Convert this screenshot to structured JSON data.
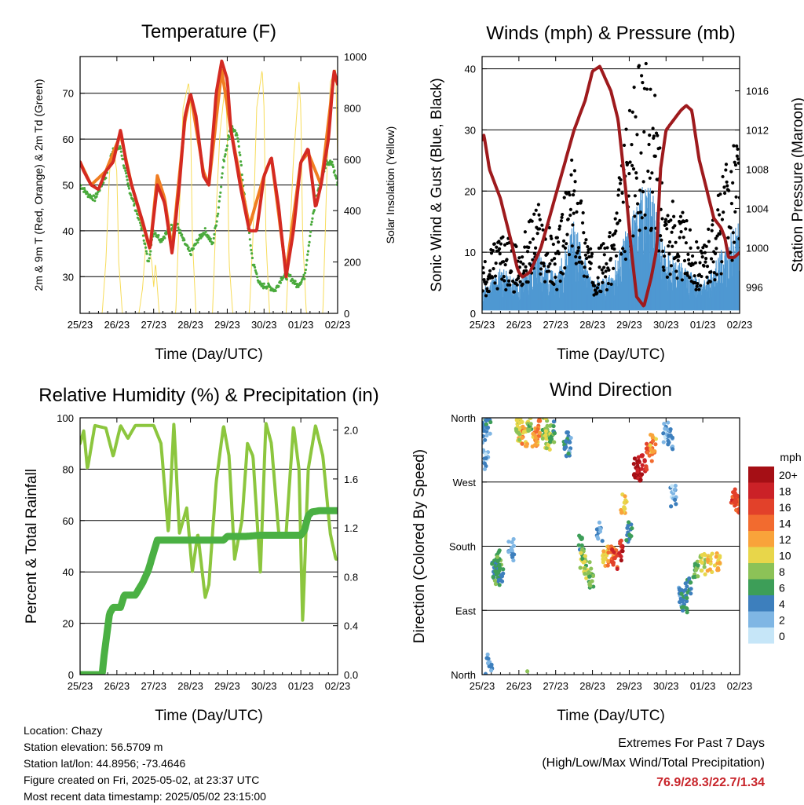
{
  "x_ticks": [
    "25/23",
    "26/23",
    "27/23",
    "28/23",
    "29/23",
    "30/23",
    "01/23",
    "02/23"
  ],
  "x_label": "Time (Day/UTC)",
  "panels": {
    "temperature": {
      "title": "Temperature (F)",
      "ylabel_left": "2m & 9m T (Red, Orange) & 2m Td (Green)",
      "ylabel_right": "Solar Insolation (Yellow)",
      "yticks_left": [
        "30",
        "40",
        "50",
        "60",
        "70"
      ],
      "yticks_right": [
        "0",
        "200",
        "400",
        "600",
        "800",
        "1000"
      ]
    },
    "winds": {
      "title": "Winds (mph) & Pressure (mb)",
      "ylabel_left": "Sonic Wind & Gust (Blue, Black)",
      "ylabel_right": "Station Pressure (Maroon)",
      "yticks_left": [
        "0",
        "10",
        "20",
        "30",
        "40"
      ],
      "yticks_right": [
        "996",
        "1000",
        "1004",
        "1008",
        "1012",
        "1016"
      ]
    },
    "humidity": {
      "title": "Relative Humidity (%) & Precipitation (in)",
      "ylabel_left": "Percent & Total Rainfall",
      "yticks_left": [
        "0",
        "20",
        "40",
        "60",
        "80",
        "100"
      ],
      "yticks_right": [
        "0.0",
        "0.4",
        "0.8",
        "1.2",
        "1.6",
        "2.0"
      ]
    },
    "direction": {
      "title": "Wind Direction",
      "ylabel_left": "Direction (Colored By Speed)",
      "yticks_left": [
        "North",
        "East",
        "South",
        "West",
        "North"
      ],
      "legend_title": "mph",
      "legend_labels": [
        "20+",
        "18",
        "16",
        "14",
        "12",
        "10",
        "8",
        "6",
        "4",
        "2",
        "0"
      ],
      "legend_colors": [
        "#a50f15",
        "#cb2127",
        "#e2412a",
        "#f26b2f",
        "#f9a33a",
        "#e8d64a",
        "#8cc257",
        "#3d9e58",
        "#3d7fbd",
        "#7fb6e4",
        "#c6e6f8"
      ]
    }
  },
  "info": {
    "location": "Location: Chazy",
    "elevation": "Station elevation: 56.5709 m",
    "latlon": "Station lat/lon: 44.8956; -73.4646",
    "created": "Figure created on Fri, 2025-05-02, at 23:37 UTC",
    "recent": "Most recent data timestamp: 2025/05/02 23:15:00"
  },
  "extremes": {
    "line1": "Extremes For Past 7 Days",
    "line2": "(High/Low/Max Wind/Total Precipitation)",
    "values": "76.9/28.3/22.7/1.34"
  },
  "colors": {
    "temp2m": "#d42a22",
    "temp9m": "#f07d22",
    "dewpoint": "#4aaa3c",
    "solar": "#f7dc5a",
    "wind": "#4f98d2",
    "gust": "#000000",
    "pressure": "#9e1a1d",
    "rh": "#8cc63e",
    "precip": "#4ab043"
  },
  "chart_data": [
    {
      "type": "line",
      "title": "Temperature (F)",
      "xlabel": "Time (Day/UTC)",
      "ylabel": "2m & 9m T (Red, Orange) & 2m Td (Green)",
      "ylabel_right": "Solar Insolation (Yellow)",
      "x_unit": "days since 25/23",
      "ylim": [
        22,
        78
      ],
      "ylim_right": [
        0,
        1000
      ],
      "series": [
        {
          "name": "2m T",
          "axis": "left",
          "x": [
            0,
            0.1,
            0.3,
            0.5,
            0.7,
            0.9,
            1.1,
            1.25,
            1.4,
            1.7,
            1.9,
            2.1,
            2.3,
            2.5,
            2.7,
            2.85,
            3.0,
            3.15,
            3.35,
            3.5,
            3.7,
            3.85,
            4.0,
            4.1,
            4.35,
            4.6,
            4.8,
            5.0,
            5.2,
            5.4,
            5.6,
            5.8,
            6.0,
            6.2,
            6.4,
            6.55,
            6.75,
            6.9,
            7.0
          ],
          "y": [
            55,
            53,
            50,
            49,
            53,
            55,
            62,
            55,
            50,
            42,
            36,
            50,
            46,
            35,
            50,
            65,
            70,
            65,
            52,
            50,
            70,
            77,
            73,
            62,
            50,
            40,
            40,
            52,
            56,
            45,
            30,
            40,
            55,
            58,
            45,
            50,
            60,
            75,
            72
          ]
        },
        {
          "name": "9m T",
          "axis": "left",
          "x": [
            0,
            0.3,
            0.7,
            1.1,
            1.4,
            1.9,
            2.1,
            2.3,
            2.5,
            2.85,
            3.0,
            3.35,
            3.5,
            3.85,
            4.1,
            4.6,
            5.0,
            5.2,
            5.6,
            6.0,
            6.2,
            6.55,
            6.9,
            7.0
          ],
          "y": [
            55,
            50,
            53,
            61,
            50,
            36,
            52,
            47,
            36,
            64,
            70,
            53,
            50,
            75,
            62,
            41,
            52,
            56,
            31,
            55,
            57,
            50,
            74,
            72
          ]
        },
        {
          "name": "2m Td",
          "axis": "left",
          "x": [
            0,
            0.2,
            0.4,
            0.7,
            0.9,
            1.1,
            1.3,
            1.5,
            1.7,
            1.85,
            2.0,
            2.2,
            2.4,
            2.6,
            2.8,
            3.0,
            3.2,
            3.4,
            3.6,
            3.75,
            3.9,
            4.1,
            4.3,
            4.5,
            4.7,
            4.9,
            5.1,
            5.3,
            5.5,
            5.7,
            5.9,
            6.1,
            6.3,
            6.5,
            6.7,
            6.85,
            7.0
          ],
          "y": [
            50,
            48,
            47,
            52,
            58,
            58,
            50,
            45,
            40,
            33,
            40,
            38,
            40,
            42,
            38,
            35,
            38,
            40,
            37,
            44,
            55,
            63,
            60,
            45,
            33,
            28,
            28,
            27,
            30,
            30,
            28,
            30,
            42,
            50,
            55,
            55,
            50
          ]
        },
        {
          "name": "Solar Insolation",
          "axis": "right",
          "x": [
            0,
            0.6,
            0.7,
            0.8,
            0.9,
            1.0,
            1.05,
            1.15,
            1.6,
            1.7,
            1.8,
            1.95,
            2.0,
            2.05,
            2.15,
            2.6,
            2.7,
            2.8,
            2.95,
            3.0,
            3.05,
            3.15,
            3.6,
            3.7,
            3.8,
            3.95,
            4.0,
            4.05,
            4.15,
            4.6,
            4.7,
            4.8,
            4.95,
            5.0,
            5.05,
            5.15,
            5.6,
            5.7,
            5.8,
            5.95,
            6.0,
            6.05,
            6.15,
            6.6,
            6.7,
            6.8,
            6.95,
            7.0
          ],
          "y": [
            0,
            0,
            200,
            550,
            650,
            550,
            200,
            0,
            0,
            100,
            300,
            200,
            100,
            200,
            0,
            0,
            400,
            800,
            900,
            800,
            300,
            0,
            0,
            400,
            700,
            900,
            700,
            200,
            0,
            0,
            300,
            800,
            950,
            800,
            300,
            0,
            0,
            300,
            600,
            900,
            800,
            300,
            0,
            0,
            500,
            900,
            950,
            600
          ]
        }
      ]
    },
    {
      "type": "line",
      "title": "Winds (mph) & Pressure (mb)",
      "xlabel": "Time (Day/UTC)",
      "ylabel": "Sonic Wind & Gust (Blue, Black)",
      "ylabel_right": "Station Pressure (Maroon)",
      "x_unit": "days since 25/23",
      "ylim": [
        0,
        42
      ],
      "ylim_right": [
        993.3,
        1019.5
      ],
      "series": [
        {
          "name": "Sonic Wind",
          "axis": "left",
          "x": [
            0,
            0.5,
            1.0,
            1.5,
            2.0,
            2.5,
            3.0,
            3.5,
            4.0,
            4.5,
            5.0,
            5.5,
            6.0,
            6.5,
            7.0
          ],
          "y": [
            3,
            6,
            4,
            8,
            5,
            12,
            4,
            5,
            12,
            18,
            8,
            6,
            4,
            8,
            12
          ]
        },
        {
          "name": "Gust",
          "axis": "left",
          "x": [
            0,
            0.5,
            1.0,
            1.5,
            2.0,
            2.5,
            3.0,
            3.5,
            4.0,
            4.5,
            5.0,
            5.5,
            6.0,
            6.5,
            7.0
          ],
          "y": [
            6,
            10,
            8,
            14,
            9,
            20,
            7,
            10,
            25,
            35,
            15,
            12,
            8,
            16,
            25
          ]
        },
        {
          "name": "Station Pressure",
          "axis": "right",
          "x": [
            0,
            0.05,
            0.2,
            0.5,
            0.8,
            0.95,
            1.0,
            1.1,
            1.3,
            1.6,
            1.9,
            2.2,
            2.5,
            2.8,
            3.0,
            3.2,
            3.5,
            3.7,
            3.9,
            4.05,
            4.2,
            4.4,
            4.6,
            4.75,
            4.85,
            5.0,
            5.2,
            5.4,
            5.55,
            5.7,
            5.9,
            6.1,
            6.3,
            6.5,
            6.6,
            6.7,
            6.85,
            7.0
          ],
          "y": [
            1011,
            1011.5,
            1008,
            1005,
            1000.5,
            998,
            997.5,
            997,
            997.5,
            1000,
            1004,
            1008,
            1012,
            1015,
            1018,
            1018.5,
            1016,
            1013,
            1006,
            1000,
            995,
            994,
            997,
            1000,
            1008,
            1012,
            1013,
            1014,
            1014.5,
            1014,
            1009,
            1006,
            1003,
            1002,
            1001,
            999,
            999,
            999.5
          ]
        }
      ]
    },
    {
      "type": "line",
      "title": "Relative Humidity (%) & Precipitation (in)",
      "xlabel": "Time (Day/UTC)",
      "ylabel": "Percent & Total Rainfall",
      "x_unit": "days since 25/23",
      "ylim": [
        0,
        100
      ],
      "ylim_right": [
        0,
        2.1
      ],
      "series": [
        {
          "name": "Relative Humidity",
          "axis": "left",
          "x": [
            0,
            0.1,
            0.2,
            0.4,
            0.7,
            0.9,
            1.1,
            1.3,
            1.5,
            1.8,
            2.0,
            2.2,
            2.4,
            2.55,
            2.7,
            2.9,
            3.05,
            3.2,
            3.4,
            3.5,
            3.7,
            3.9,
            4.05,
            4.2,
            4.4,
            4.55,
            4.7,
            4.9,
            5.05,
            5.2,
            5.4,
            5.6,
            5.8,
            5.95,
            6.05,
            6.2,
            6.4,
            6.6,
            6.8,
            6.95,
            7.0
          ],
          "y": [
            90,
            95,
            80,
            97,
            96,
            85,
            97,
            92,
            97,
            97,
            97,
            90,
            55,
            98,
            55,
            65,
            40,
            55,
            30,
            35,
            75,
            97,
            85,
            45,
            60,
            90,
            85,
            40,
            98,
            90,
            55,
            55,
            97,
            80,
            20,
            80,
            97,
            85,
            55,
            45,
            45
          ]
        },
        {
          "name": "Total Precipitation",
          "axis": "right",
          "x": [
            0,
            0.6,
            0.65,
            0.8,
            0.9,
            1.1,
            1.2,
            1.5,
            1.7,
            1.85,
            2.0,
            2.1,
            2.3,
            3.0,
            3.9,
            4.0,
            4.5,
            4.9,
            5.5,
            6.0,
            6.1,
            6.2,
            6.3,
            6.5,
            7.0
          ],
          "y": [
            0,
            0,
            0.15,
            0.5,
            0.55,
            0.55,
            0.65,
            0.65,
            0.75,
            0.85,
            1.0,
            1.1,
            1.1,
            1.1,
            1.1,
            1.13,
            1.13,
            1.14,
            1.14,
            1.14,
            1.18,
            1.3,
            1.33,
            1.34,
            1.34
          ]
        }
      ]
    },
    {
      "type": "scatter",
      "title": "Wind Direction",
      "xlabel": "Time (Day/UTC)",
      "ylabel": "Direction (Colored By Speed)",
      "x_unit": "days since 25/23",
      "ylim": [
        0,
        360
      ],
      "y_unit": "degrees (0 = North, 90 = East, 180 = South, 270 = West, 360 = North)",
      "color_by": "speed (mph)",
      "points": [
        {
          "x": 0.05,
          "y": 340,
          "speed": 3
        },
        {
          "x": 0.1,
          "y": 300,
          "speed": 2
        },
        {
          "x": 0.15,
          "y": 350,
          "speed": 4
        },
        {
          "x": 0.2,
          "y": 20,
          "speed": 3
        },
        {
          "x": 0.35,
          "y": 150,
          "speed": 5
        },
        {
          "x": 0.4,
          "y": 140,
          "speed": 6
        },
        {
          "x": 0.45,
          "y": 160,
          "speed": 6
        },
        {
          "x": 0.5,
          "y": 145,
          "speed": 5
        },
        {
          "x": 0.8,
          "y": 175,
          "speed": 3
        },
        {
          "x": 1.0,
          "y": 345,
          "speed": 9
        },
        {
          "x": 1.05,
          "y": 340,
          "speed": 10
        },
        {
          "x": 1.15,
          "y": 335,
          "speed": 12
        },
        {
          "x": 1.3,
          "y": 350,
          "speed": 8
        },
        {
          "x": 1.45,
          "y": 330,
          "speed": 12
        },
        {
          "x": 1.5,
          "y": 345,
          "speed": 14
        },
        {
          "x": 1.7,
          "y": 345,
          "speed": 8
        },
        {
          "x": 1.8,
          "y": 330,
          "speed": 9
        },
        {
          "x": 1.9,
          "y": 340,
          "speed": 6
        },
        {
          "x": 2.3,
          "y": 325,
          "speed": 5
        },
        {
          "x": 2.35,
          "y": 320,
          "speed": 4
        },
        {
          "x": 2.7,
          "y": 180,
          "speed": 6
        },
        {
          "x": 2.75,
          "y": 160,
          "speed": 8
        },
        {
          "x": 2.85,
          "y": 150,
          "speed": 9
        },
        {
          "x": 2.95,
          "y": 135,
          "speed": 7
        },
        {
          "x": 3.2,
          "y": 200,
          "speed": 3
        },
        {
          "x": 3.35,
          "y": 165,
          "speed": 11
        },
        {
          "x": 3.5,
          "y": 168,
          "speed": 13
        },
        {
          "x": 3.6,
          "y": 163,
          "speed": 16
        },
        {
          "x": 3.75,
          "y": 175,
          "speed": 18
        },
        {
          "x": 3.85,
          "y": 240,
          "speed": 11
        },
        {
          "x": 4.0,
          "y": 200,
          "speed": 5
        },
        {
          "x": 4.2,
          "y": 290,
          "speed": 20
        },
        {
          "x": 4.3,
          "y": 285,
          "speed": 19
        },
        {
          "x": 4.4,
          "y": 300,
          "speed": 17
        },
        {
          "x": 4.55,
          "y": 310,
          "speed": 15
        },
        {
          "x": 4.65,
          "y": 325,
          "speed": 12
        },
        {
          "x": 5.0,
          "y": 340,
          "speed": 2
        },
        {
          "x": 5.1,
          "y": 330,
          "speed": 3
        },
        {
          "x": 5.2,
          "y": 250,
          "speed": 2
        },
        {
          "x": 5.4,
          "y": 110,
          "speed": 4
        },
        {
          "x": 5.5,
          "y": 100,
          "speed": 5
        },
        {
          "x": 5.6,
          "y": 120,
          "speed": 5
        },
        {
          "x": 5.8,
          "y": 150,
          "speed": 7
        },
        {
          "x": 6.0,
          "y": 155,
          "speed": 9
        },
        {
          "x": 6.2,
          "y": 155,
          "speed": 11
        },
        {
          "x": 6.4,
          "y": 155,
          "speed": 12
        },
        {
          "x": 6.85,
          "y": 245,
          "speed": 16
        },
        {
          "x": 6.95,
          "y": 240,
          "speed": 15
        }
      ]
    }
  ]
}
